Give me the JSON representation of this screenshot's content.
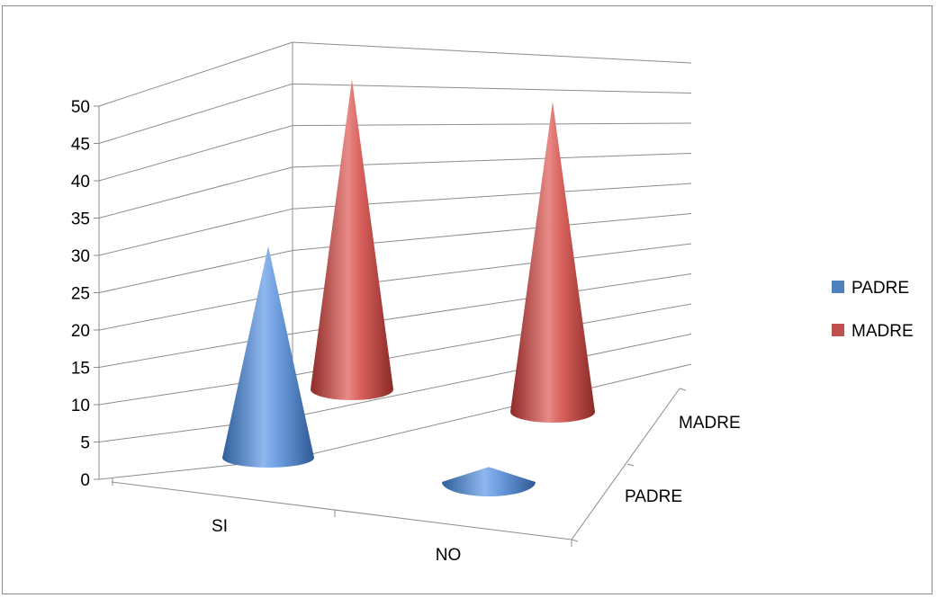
{
  "chart_data": {
    "type": "bar",
    "bar_shape": "cone",
    "projection": "3d",
    "categories": [
      "SI",
      "NO"
    ],
    "series": [
      {
        "name": "PADRE",
        "values": [
          28,
          2
        ]
      },
      {
        "name": "MADRE",
        "values": [
          50,
          50
        ]
      }
    ],
    "ylim": [
      0,
      50
    ],
    "yticks": [
      "0",
      "5",
      "10",
      "15",
      "20",
      "25",
      "30",
      "35",
      "40",
      "45",
      "50"
    ],
    "depth_labels": [
      "PADRE",
      "MADRE"
    ],
    "legend": [
      {
        "name": "PADRE",
        "color": "#4f81bd"
      },
      {
        "name": "MADRE",
        "color": "#c0504d"
      }
    ],
    "legend_position": "right",
    "grid": true
  }
}
